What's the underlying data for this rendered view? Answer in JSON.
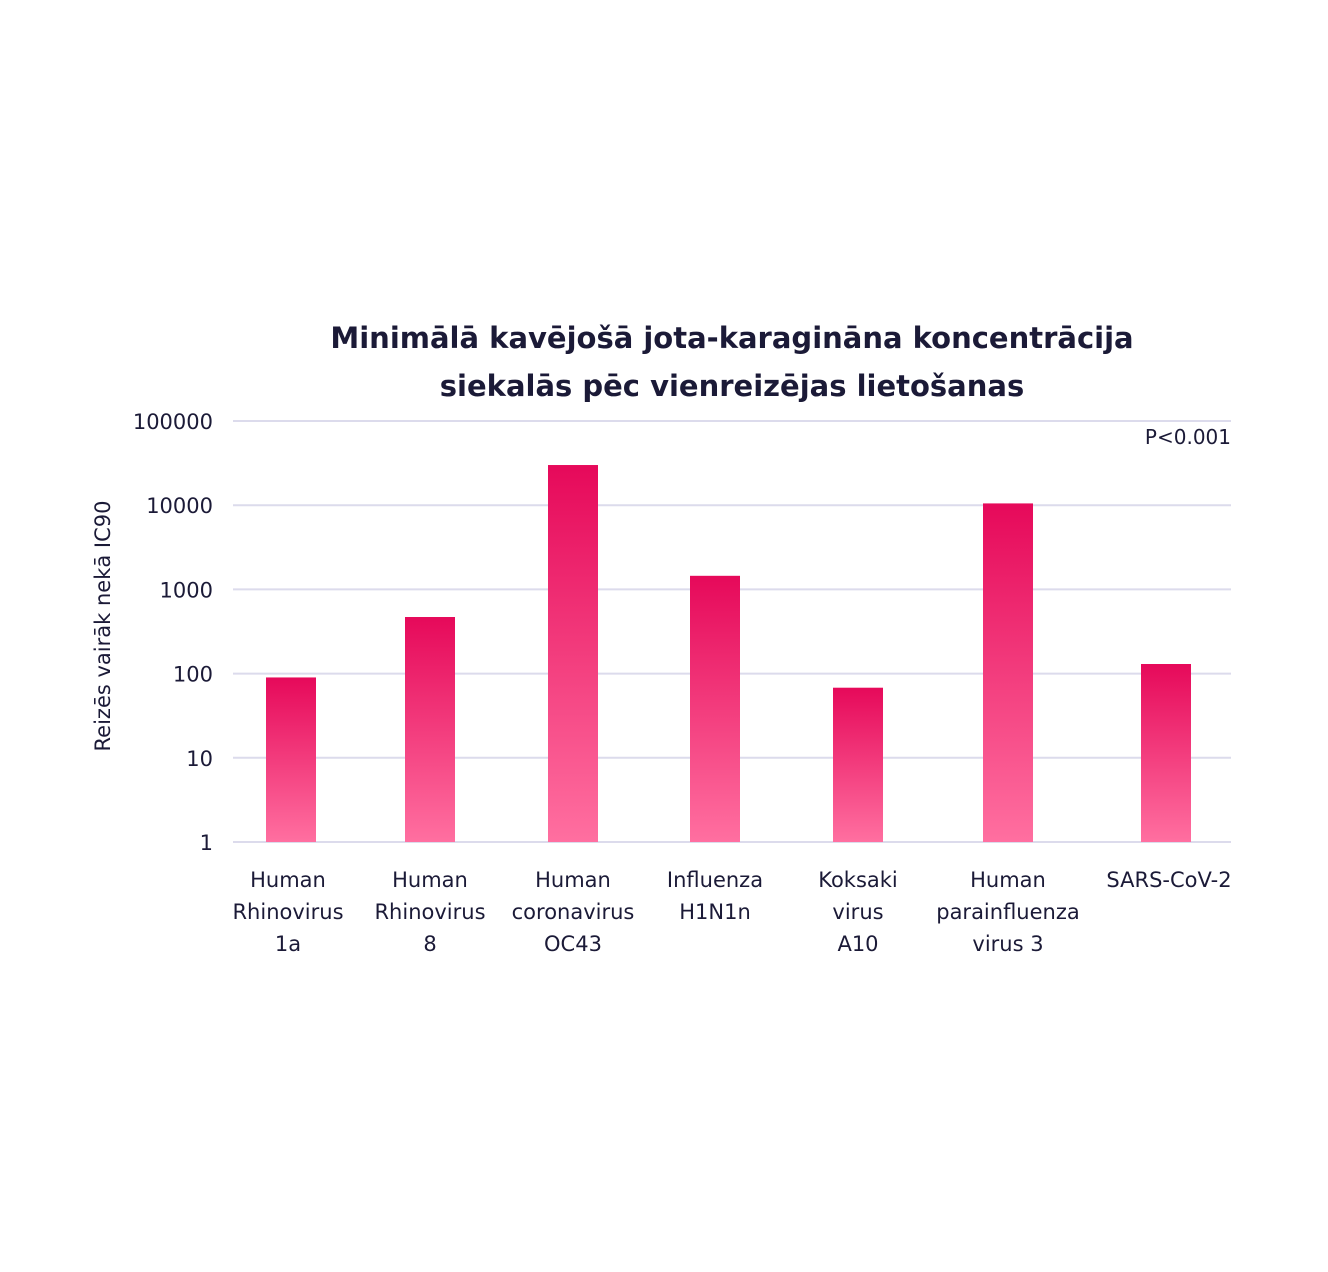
{
  "chart_data": {
    "type": "bar",
    "title_lines": [
      "Minimālā kavējošā jota-karagināna koncentrācija",
      "siekalās pēc vienreizējas lietošanas"
    ],
    "ylabel": "Reizēs vairāk nekā IC90",
    "yscale": "log",
    "ylim": [
      1,
      100000
    ],
    "yticks": [
      "1",
      "10",
      "100",
      "1000",
      "10000",
      "100000"
    ],
    "annotation": "P<0.001",
    "grid": true,
    "categories": [
      [
        "Human",
        "Rhinovirus",
        "1a"
      ],
      [
        "Human",
        "Rhinovirus",
        "8"
      ],
      [
        "Human",
        "coronavirus",
        "OC43"
      ],
      [
        "Influenza",
        "H1N1n"
      ],
      [
        "Koksaki",
        "virus",
        "A10"
      ],
      [
        "Human",
        "parainfluenza",
        "virus 3"
      ],
      [
        "SARS-CoV-2"
      ]
    ],
    "values": [
      90,
      470,
      30000,
      1450,
      68,
      10500,
      130
    ],
    "colors": {
      "bar_top": "#e6095a",
      "bar_bottom": "#ff6fa0",
      "grid": "#dcdbec",
      "text": "#1b1a37"
    }
  }
}
